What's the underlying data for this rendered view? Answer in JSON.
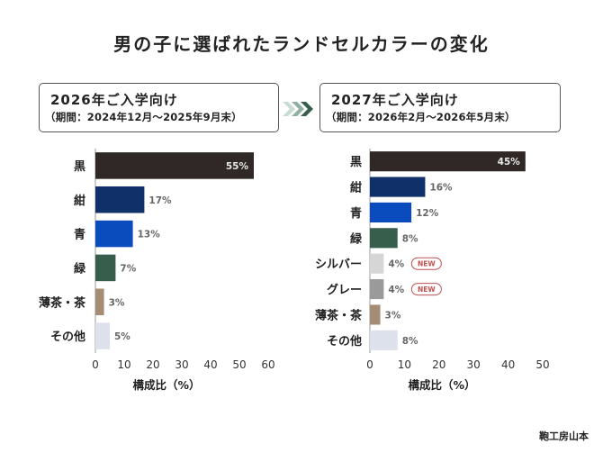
{
  "title": "男の子に選ばれたランドセルカラーの変化",
  "credit": "鞄工房山本",
  "badge_label": "NEW",
  "colors": {
    "black": "#2f2827",
    "navy": "#10306a",
    "blue": "#0a4bbd",
    "green": "#375e4c",
    "brown": "#a48d74",
    "other": "#dde1ec",
    "silver": "#d6d6d6",
    "gray": "#9a9a9a",
    "value_light": "#e8e8e8",
    "value_dark": "#666666",
    "badge": "#c05050"
  },
  "periods": [
    {
      "title": "2026年ご入学向け",
      "subtitle": "（期間：2024年12月〜2025年9月末）"
    },
    {
      "title": "2027年ご入学向け",
      "subtitle": "（期間：2026年2月〜2026年5月末）"
    }
  ],
  "chart_data": [
    {
      "type": "bar",
      "orientation": "horizontal",
      "categories": [
        "黒",
        "紺",
        "青",
        "緑",
        "薄茶・茶",
        "その他"
      ],
      "values": [
        55,
        17,
        13,
        7,
        3,
        5
      ],
      "value_labels": [
        "55%",
        "17%",
        "13%",
        "7%",
        "3%",
        "5%"
      ],
      "bar_colors": [
        "black",
        "navy",
        "blue",
        "green",
        "brown",
        "other"
      ],
      "new": [
        false,
        false,
        false,
        false,
        false,
        false
      ],
      "xlabel": "構成比（%）",
      "xlim": [
        0,
        60
      ],
      "xticks": [
        "0",
        "10",
        "20",
        "30",
        "40",
        "50",
        "60"
      ]
    },
    {
      "type": "bar",
      "orientation": "horizontal",
      "categories": [
        "黒",
        "紺",
        "青",
        "緑",
        "シルバー",
        "グレー",
        "薄茶・茶",
        "その他"
      ],
      "values": [
        45,
        16,
        12,
        8,
        4,
        4,
        3,
        8
      ],
      "value_labels": [
        "45%",
        "16%",
        "12%",
        "8%",
        "4%",
        "4%",
        "3%",
        "8%"
      ],
      "bar_colors": [
        "black",
        "navy",
        "blue",
        "green",
        "silver",
        "gray",
        "brown",
        "other"
      ],
      "new": [
        false,
        false,
        false,
        false,
        true,
        true,
        false,
        false
      ],
      "xlabel": "構成比（%）",
      "xlim": [
        0,
        50
      ],
      "xticks": [
        "0",
        "10",
        "20",
        "30",
        "40",
        "50"
      ]
    }
  ]
}
